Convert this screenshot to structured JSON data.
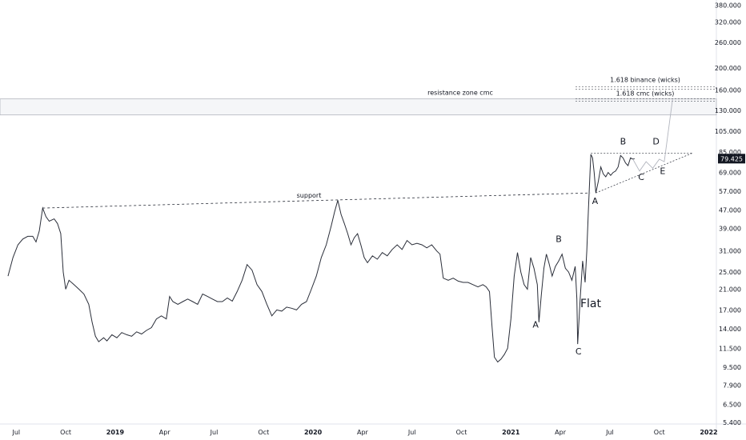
{
  "chart_data": {
    "type": "line",
    "scale": "log",
    "ylim": [
      4.9,
      400
    ],
    "y_ticks": [
      "5.400",
      "6.500",
      "7.900",
      "9.500",
      "11.500",
      "14.000",
      "17.000",
      "21.000",
      "25.000",
      "31.000",
      "39.000",
      "47.000",
      "57.000",
      "69.000",
      "85.000",
      "105.000",
      "130.000",
      "160.000",
      "200.000",
      "260.000",
      "320.000",
      "380.000"
    ],
    "x_tick_labels": [
      {
        "label": "Jul",
        "t": 0.5
      },
      {
        "label": "Oct",
        "t": 3.5
      },
      {
        "label": "2019",
        "t": 6.5,
        "bold": true
      },
      {
        "label": "Apr",
        "t": 9.5
      },
      {
        "label": "Jul",
        "t": 12.5
      },
      {
        "label": "Oct",
        "t": 15.5
      },
      {
        "label": "2020",
        "t": 18.5,
        "bold": true
      },
      {
        "label": "Apr",
        "t": 21.5
      },
      {
        "label": "Jul",
        "t": 24.5
      },
      {
        "label": "Oct",
        "t": 27.5
      },
      {
        "label": "2021",
        "t": 30.5,
        "bold": true
      },
      {
        "label": "Apr",
        "t": 33.5
      },
      {
        "label": "Jul",
        "t": 36.5
      },
      {
        "label": "Oct",
        "t": 39.5
      },
      {
        "label": "2022",
        "t": 42.5,
        "bold": true
      }
    ],
    "price_label": "79.425",
    "series": [
      {
        "points": [
          [
            0.0,
            24
          ],
          [
            0.3,
            29
          ],
          [
            0.6,
            33
          ],
          [
            0.9,
            35
          ],
          [
            1.2,
            36
          ],
          [
            1.5,
            36
          ],
          [
            1.7,
            34
          ],
          [
            1.9,
            38
          ],
          [
            2.1,
            48
          ],
          [
            2.3,
            44
          ],
          [
            2.5,
            42
          ],
          [
            2.8,
            43
          ],
          [
            3.0,
            41
          ],
          [
            3.2,
            37
          ],
          [
            3.35,
            25
          ],
          [
            3.5,
            21
          ],
          [
            3.7,
            23
          ],
          [
            4.0,
            22
          ],
          [
            4.3,
            21
          ],
          [
            4.6,
            20
          ],
          [
            4.9,
            18
          ],
          [
            5.1,
            15
          ],
          [
            5.3,
            13
          ],
          [
            5.5,
            12.3
          ],
          [
            5.8,
            12.8
          ],
          [
            6.0,
            12.4
          ],
          [
            6.3,
            13.2
          ],
          [
            6.6,
            12.8
          ],
          [
            6.9,
            13.5
          ],
          [
            7.2,
            13.2
          ],
          [
            7.5,
            13.0
          ],
          [
            7.8,
            13.6
          ],
          [
            8.1,
            13.3
          ],
          [
            8.4,
            13.8
          ],
          [
            8.7,
            14.2
          ],
          [
            9.0,
            15.5
          ],
          [
            9.3,
            16.0
          ],
          [
            9.6,
            15.5
          ],
          [
            9.8,
            19.5
          ],
          [
            10.0,
            18.5
          ],
          [
            10.3,
            18.0
          ],
          [
            10.6,
            18.5
          ],
          [
            10.9,
            19.0
          ],
          [
            11.2,
            18.5
          ],
          [
            11.5,
            18.0
          ],
          [
            11.8,
            20.0
          ],
          [
            12.1,
            19.5
          ],
          [
            12.4,
            19.0
          ],
          [
            12.7,
            18.5
          ],
          [
            13.0,
            18.5
          ],
          [
            13.3,
            19.2
          ],
          [
            13.6,
            18.6
          ],
          [
            13.9,
            20.5
          ],
          [
            14.2,
            23.0
          ],
          [
            14.5,
            27.0
          ],
          [
            14.8,
            25.5
          ],
          [
            15.1,
            22.0
          ],
          [
            15.4,
            20.5
          ],
          [
            15.7,
            18.0
          ],
          [
            16.0,
            16.0
          ],
          [
            16.3,
            17.0
          ],
          [
            16.6,
            16.8
          ],
          [
            16.9,
            17.5
          ],
          [
            17.2,
            17.3
          ],
          [
            17.5,
            17.0
          ],
          [
            17.8,
            18.0
          ],
          [
            18.1,
            18.5
          ],
          [
            18.4,
            21.0
          ],
          [
            18.7,
            24.0
          ],
          [
            19.0,
            29.0
          ],
          [
            19.3,
            33.0
          ],
          [
            19.6,
            40.0
          ],
          [
            19.8,
            46.0
          ],
          [
            20.0,
            52.0
          ],
          [
            20.2,
            45.0
          ],
          [
            20.4,
            41.0
          ],
          [
            20.6,
            37.0
          ],
          [
            20.8,
            33.0
          ],
          [
            21.0,
            35.5
          ],
          [
            21.2,
            37.0
          ],
          [
            21.4,
            33.0
          ],
          [
            21.6,
            29.0
          ],
          [
            21.8,
            27.5
          ],
          [
            22.1,
            29.5
          ],
          [
            22.4,
            28.5
          ],
          [
            22.7,
            30.5
          ],
          [
            23.0,
            29.5
          ],
          [
            23.3,
            31.5
          ],
          [
            23.6,
            33.0
          ],
          [
            23.9,
            31.5
          ],
          [
            24.2,
            34.5
          ],
          [
            24.5,
            33.0
          ],
          [
            24.8,
            33.5
          ],
          [
            25.1,
            33.0
          ],
          [
            25.4,
            32.0
          ],
          [
            25.7,
            33.0
          ],
          [
            26.0,
            31.0
          ],
          [
            26.2,
            30.0
          ],
          [
            26.4,
            23.5
          ],
          [
            26.7,
            23.0
          ],
          [
            27.0,
            23.5
          ],
          [
            27.3,
            22.8
          ],
          [
            27.6,
            22.5
          ],
          [
            27.9,
            22.5
          ],
          [
            28.2,
            22.0
          ],
          [
            28.5,
            21.5
          ],
          [
            28.8,
            22.0
          ],
          [
            29.0,
            21.5
          ],
          [
            29.2,
            20.5
          ],
          [
            29.35,
            14.5
          ],
          [
            29.5,
            10.5
          ],
          [
            29.7,
            10.0
          ],
          [
            29.9,
            10.3
          ],
          [
            30.1,
            10.8
          ],
          [
            30.3,
            11.5
          ],
          [
            30.5,
            15.5
          ],
          [
            30.7,
            24.0
          ],
          [
            30.9,
            30.5
          ],
          [
            31.1,
            25.0
          ],
          [
            31.3,
            22.0
          ],
          [
            31.5,
            21.0
          ],
          [
            31.7,
            29.0
          ],
          [
            31.9,
            26.0
          ],
          [
            32.1,
            22.0
          ],
          [
            32.2,
            15.0
          ],
          [
            32.35,
            20.0
          ],
          [
            32.5,
            26.0
          ],
          [
            32.65,
            30.0
          ],
          [
            32.8,
            27.5
          ],
          [
            33.0,
            24.0
          ],
          [
            33.2,
            26.5
          ],
          [
            33.4,
            28.0
          ],
          [
            33.6,
            30.0
          ],
          [
            33.8,
            26.0
          ],
          [
            34.0,
            25.0
          ],
          [
            34.2,
            23.0
          ],
          [
            34.4,
            26.5
          ],
          [
            34.5,
            19.0
          ],
          [
            34.55,
            12.0
          ],
          [
            34.7,
            19.0
          ],
          [
            34.85,
            28.0
          ],
          [
            35.0,
            22.5
          ],
          [
            35.1,
            31.0
          ],
          [
            35.2,
            47.0
          ],
          [
            35.3,
            70.0
          ],
          [
            35.35,
            83.0
          ],
          [
            35.45,
            80.0
          ],
          [
            35.55,
            69.0
          ],
          [
            35.65,
            56.0
          ],
          [
            35.8,
            63.0
          ],
          [
            35.95,
            73.0
          ],
          [
            36.1,
            68.0
          ],
          [
            36.25,
            66.0
          ],
          [
            36.4,
            69.0
          ],
          [
            36.55,
            67.0
          ],
          [
            36.7,
            69.0
          ],
          [
            36.85,
            70.0
          ],
          [
            37.0,
            73.0
          ],
          [
            37.15,
            82.0
          ],
          [
            37.3,
            80.0
          ],
          [
            37.45,
            76.0
          ],
          [
            37.6,
            74.0
          ],
          [
            37.75,
            80.0
          ],
          [
            37.9,
            79.0
          ],
          [
            38.0,
            79.425
          ]
        ]
      }
    ],
    "annotations": {
      "resistance_label": "resistance zone cmc",
      "support_label": "support",
      "binance_label": "1.618 binance (wicks)",
      "cmc_label": "1.618 cmc (wicks)",
      "flat_label": "Flat",
      "wave_labels": [
        {
          "text": "A",
          "t": 35.6,
          "p": 50
        },
        {
          "text": "B",
          "t": 37.3,
          "p": 92
        },
        {
          "text": "C",
          "t": 38.4,
          "p": 64
        },
        {
          "text": "D",
          "t": 39.3,
          "p": 92
        },
        {
          "text": "E",
          "t": 39.7,
          "p": 68
        },
        {
          "text": "B",
          "t": 33.4,
          "p": 34
        },
        {
          "text": "A",
          "t": 32.0,
          "p": 14.2
        },
        {
          "text": "C",
          "t": 34.6,
          "p": 10.8
        }
      ],
      "resistance_zone": [
        124,
        146
      ],
      "binance_level": 165,
      "cmc_level": 146,
      "support_line": [
        [
          2.1,
          48
        ],
        [
          35.3,
          56
        ]
      ],
      "triangle_upper": [
        [
          35.35,
          84
        ],
        [
          41.5,
          84
        ]
      ],
      "triangle_lower": [
        [
          35.65,
          56
        ],
        [
          41.5,
          84
        ]
      ],
      "projection": [
        [
          37.9,
          79
        ],
        [
          38.3,
          70
        ],
        [
          38.7,
          77
        ],
        [
          39.1,
          72
        ],
        [
          39.5,
          79
        ],
        [
          39.8,
          77
        ],
        [
          40.3,
          145
        ]
      ]
    }
  }
}
